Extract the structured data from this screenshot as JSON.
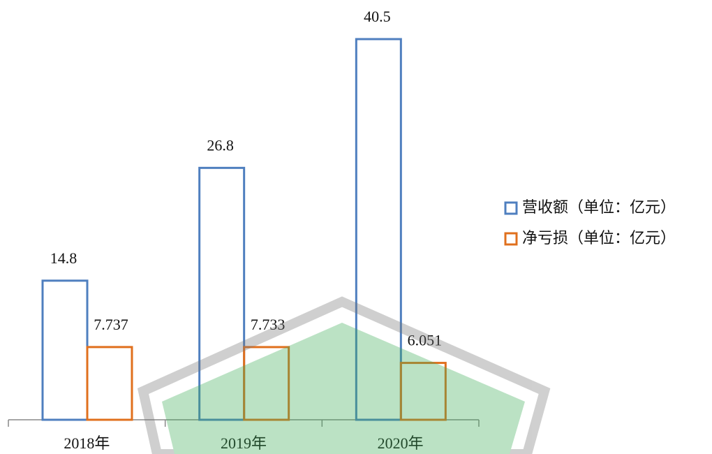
{
  "chart_data": {
    "type": "bar",
    "categories": [
      "2018年",
      "2019年",
      "2020年"
    ],
    "series": [
      {
        "name": "营收额（单位：亿元）",
        "color": "#4f7fbf",
        "values": [
          14.8,
          26.8,
          40.5
        ]
      },
      {
        "name": "净亏损（单位：亿元）",
        "color": "#e0701e",
        "values": [
          7.737,
          7.733,
          6.051
        ]
      }
    ],
    "legend": "right"
  }
}
